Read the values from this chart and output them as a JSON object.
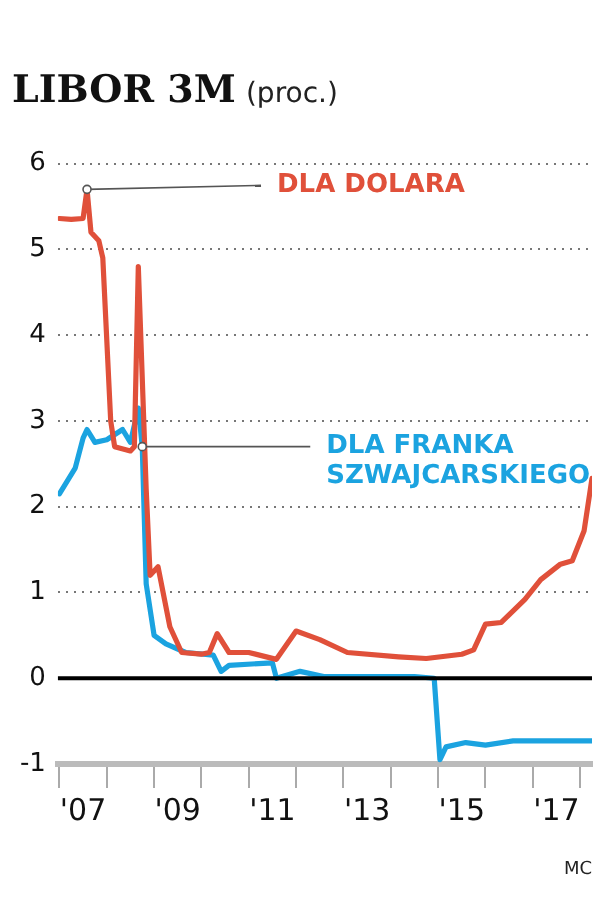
{
  "chart_data": {
    "type": "line",
    "title": "LIBOR 3M",
    "subtitle": "(proc.)",
    "xlim": [
      "2006-12-20",
      "2018-04"
    ],
    "xticks": [
      {
        "value": "2007-01",
        "label": null
      },
      {
        "value": "2007-07",
        "label": "'07"
      },
      {
        "value": "2008-01",
        "label": null
      },
      {
        "value": "2009-01",
        "label": null
      },
      {
        "value": "2009-07",
        "label": "'09"
      },
      {
        "value": "2010-01",
        "label": null
      },
      {
        "value": "2011-01",
        "label": null
      },
      {
        "value": "2011-07",
        "label": "'11"
      },
      {
        "value": "2012-01",
        "label": null
      },
      {
        "value": "2013-01",
        "label": null
      },
      {
        "value": "2013-07",
        "label": "'13"
      },
      {
        "value": "2014-01",
        "label": null
      },
      {
        "value": "2015-01",
        "label": null
      },
      {
        "value": "2015-07",
        "label": "'15"
      },
      {
        "value": "2016-01",
        "label": null
      },
      {
        "value": "2017-01",
        "label": null
      },
      {
        "value": "2017-07",
        "label": "'17"
      },
      {
        "value": "2018-01",
        "label": null
      }
    ],
    "ylim": [
      -1,
      6
    ],
    "yticks": [
      -1,
      0,
      1,
      2,
      3,
      4,
      5,
      6
    ],
    "grid": "y",
    "legend": false,
    "ref_lines": [
      {
        "axis": "y",
        "value": 0,
        "color": "#000000"
      }
    ],
    "annotations": [
      "MC"
    ],
    "series": [
      {
        "name": "DLA DOLARA",
        "color": "#e0503a",
        "x": [
          "2007-01",
          "2007-04",
          "2007-07",
          "2007-08",
          "2007-09",
          "2007-11",
          "2007-12",
          "2008-02",
          "2008-03",
          "2008-07",
          "2008-08",
          "2008-09",
          "2008-11",
          "2008-12",
          "2009-02",
          "2009-05",
          "2009-08",
          "2010-01",
          "2010-03",
          "2010-05",
          "2010-08",
          "2011-01",
          "2011-08",
          "2012-01",
          "2012-07",
          "2013-02",
          "2014-03",
          "2014-10",
          "2015-07",
          "2015-10",
          "2016-01",
          "2016-05",
          "2016-11",
          "2017-03",
          "2017-08",
          "2017-11",
          "2018-02",
          "2018-04"
        ],
        "values": [
          5.36,
          5.35,
          5.36,
          5.7,
          5.2,
          5.1,
          4.9,
          3.0,
          2.7,
          2.65,
          2.7,
          4.8,
          2.2,
          1.2,
          1.3,
          0.6,
          0.3,
          0.28,
          0.3,
          0.52,
          0.3,
          0.3,
          0.22,
          0.55,
          0.45,
          0.3,
          0.25,
          0.23,
          0.28,
          0.33,
          0.63,
          0.65,
          0.92,
          1.15,
          1.33,
          1.37,
          1.72,
          2.33
        ]
      },
      {
        "name": "DLA FRANKA SZWAJCARSKIEGO",
        "color": "#1ba3e0",
        "x": [
          "2007-01",
          "2007-05",
          "2007-07",
          "2007-08",
          "2007-10",
          "2008-01",
          "2008-05",
          "2008-07",
          "2008-09",
          "2008-10",
          "2008-11",
          "2009-01",
          "2009-04",
          "2009-09",
          "2010-04",
          "2010-06",
          "2010-08",
          "2011-07",
          "2011-08",
          "2012-02",
          "2012-08",
          "2014-07",
          "2014-12",
          "2015-01-15",
          "2015-03",
          "2015-08",
          "2016-01",
          "2016-08",
          "2017-07",
          "2018-04"
        ],
        "values": [
          2.15,
          2.45,
          2.8,
          2.9,
          2.75,
          2.78,
          2.9,
          2.75,
          3.15,
          2.7,
          1.1,
          0.5,
          0.4,
          0.3,
          0.27,
          0.08,
          0.15,
          0.18,
          0.0,
          0.08,
          0.02,
          0.02,
          0.0,
          -0.95,
          -0.8,
          -0.75,
          -0.78,
          -0.73,
          -0.73,
          -0.73
        ]
      }
    ]
  }
}
